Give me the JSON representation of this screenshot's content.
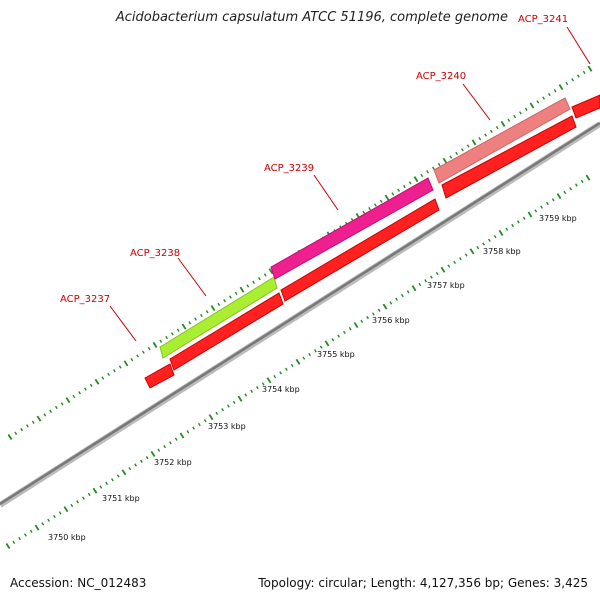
{
  "title": "Acidobacterium capsulatum ATCC 51196, complete genome",
  "footer": {
    "accession": "Accession: NC_012483",
    "summary": "Topology: circular; Length: 4,127,356 bp; Genes: 3,425"
  },
  "colors": {
    "forward_strand": "#ff0000",
    "backbone": "#888888",
    "tick": "#228b22",
    "label": "#cc0000"
  },
  "genes": [
    {
      "name": "ACP_3237",
      "color": "#ff2a2a"
    },
    {
      "name": "ACP_3238",
      "color": "#aaee33"
    },
    {
      "name": "ACP_3239",
      "color": "#ee1f8f"
    },
    {
      "name": "ACP_3240",
      "color": "#ee8080"
    },
    {
      "name": "ACP_3241",
      "color": "#ff1a1a"
    }
  ],
  "scale_labels": [
    "3750 kbp",
    "3751 kbp",
    "3752 kbp",
    "3753 kbp",
    "3754 kbp",
    "3755 kbp",
    "3756 kbp",
    "3757 kbp",
    "3758 kbp",
    "3759 kbp"
  ]
}
